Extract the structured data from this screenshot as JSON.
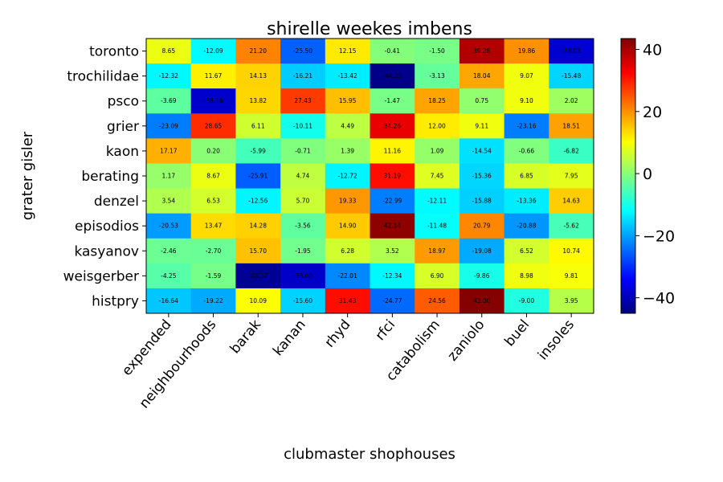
{
  "chart_data": {
    "type": "heatmap",
    "title": "shirelle weekes imbens",
    "xlabel": "clubmaster shophouses",
    "ylabel": "grater gisler",
    "colormap": "jet",
    "vmin": -45.0,
    "vmax": 43.5,
    "colorbar_ticks": [
      "40",
      "20",
      "0",
      "−20",
      "−40"
    ],
    "colorbar_tick_values": [
      40,
      20,
      0,
      -20,
      -40
    ],
    "columns": [
      "expended",
      "neighbourhoods",
      "barak",
      "kanan",
      "rhyd",
      "rfci",
      "catabolism",
      "zaniolo",
      "buel",
      "insoles"
    ],
    "rows": [
      "toronto",
      "trochilidae",
      "psco",
      "grier",
      "kaon",
      "berating",
      "denzel",
      "episodios",
      "kasyanov",
      "weisgerber",
      "histpry"
    ],
    "values": [
      [
        8.65,
        -12.09,
        21.2,
        -25.5,
        12.15,
        -0.41,
        -1.5,
        39.28,
        19.86,
        -38.01
      ],
      [
        -12.32,
        11.67,
        14.13,
        -16.21,
        -13.42,
        -44.23,
        -3.13,
        18.04,
        9.07,
        -15.48
      ],
      [
        -3.69,
        -38.26,
        13.82,
        27.43,
        15.95,
        -1.47,
        18.25,
        0.75,
        9.1,
        2.02
      ],
      [
        -23.09,
        28.65,
        6.11,
        -10.11,
        4.49,
        34.26,
        12.0,
        9.11,
        -23.16,
        18.51
      ],
      [
        17.17,
        0.2,
        -5.99,
        -0.71,
        1.39,
        11.16,
        1.09,
        -14.54,
        -0.66,
        -6.82
      ],
      [
        1.17,
        8.67,
        -25.91,
        4.74,
        -12.72,
        31.19,
        7.45,
        -15.36,
        6.85,
        7.95
      ],
      [
        3.54,
        6.53,
        -12.56,
        5.7,
        19.33,
        -22.99,
        -12.11,
        -15.88,
        -13.36,
        14.63
      ],
      [
        -20.53,
        13.47,
        14.28,
        -3.56,
        14.9,
        42.14,
        -11.48,
        20.79,
        -20.88,
        -5.62
      ],
      [
        -2.46,
        -2.7,
        15.7,
        -1.95,
        6.28,
        3.52,
        18.97,
        -19.08,
        6.52,
        10.74
      ],
      [
        -4.25,
        -1.59,
        -43.37,
        -38.6,
        -22.01,
        -12.34,
        6.9,
        -9.86,
        8.98,
        9.81
      ],
      [
        -16.64,
        -19.22,
        10.09,
        -15.6,
        31.43,
        -24.77,
        24.56,
        43.0,
        -9.0,
        3.95
      ]
    ]
  }
}
